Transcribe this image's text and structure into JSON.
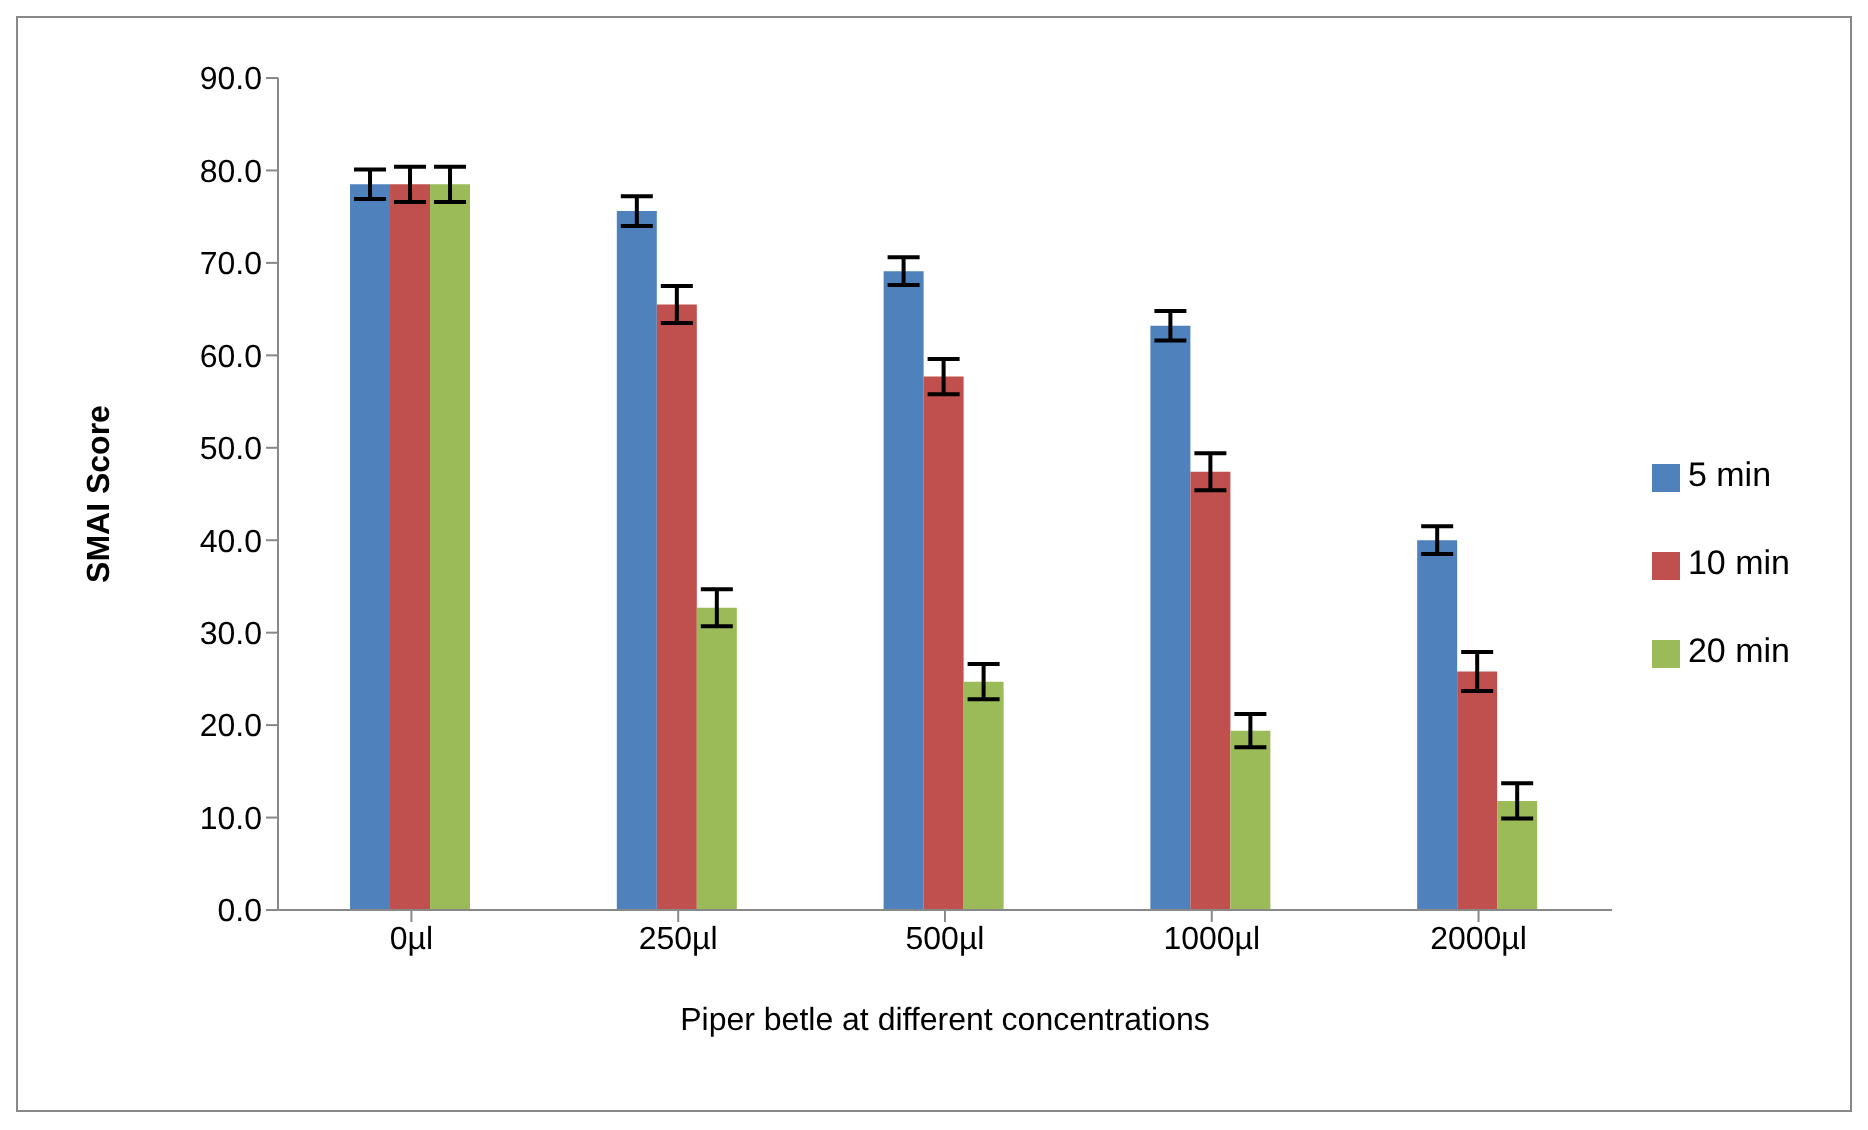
{
  "chart_data": {
    "type": "bar",
    "xlabel": "Piper betle  at different concentrations",
    "ylabel": "SMAI Score",
    "categories": [
      "0µl",
      "250µl",
      "500µl",
      "1000µl",
      "2000µl"
    ],
    "series": [
      {
        "name": "5 min",
        "color": "#4f81bd",
        "values": [
          78.5,
          75.6,
          69.1,
          63.2,
          40.0
        ],
        "errors": [
          1.6,
          1.6,
          1.5,
          1.6,
          1.5
        ]
      },
      {
        "name": "10 min",
        "color": "#c0504d",
        "values": [
          78.5,
          65.5,
          57.7,
          47.4,
          25.8
        ],
        "errors": [
          1.9,
          2.0,
          1.9,
          2.0,
          2.1
        ]
      },
      {
        "name": "20 min",
        "color": "#9bbb59",
        "values": [
          78.5,
          32.7,
          24.7,
          19.4,
          11.8
        ],
        "errors": [
          1.9,
          2.0,
          1.9,
          1.8,
          1.9
        ]
      }
    ],
    "ylim": [
      0,
      90
    ],
    "yticks": [
      {
        "value": 0,
        "label": "0.0"
      },
      {
        "value": 10,
        "label": "10.0"
      },
      {
        "value": 20,
        "label": "20.0"
      },
      {
        "value": 30,
        "label": "30.0"
      },
      {
        "value": 40,
        "label": "40.0"
      },
      {
        "value": 50,
        "label": "50.0"
      },
      {
        "value": 60,
        "label": "60.0"
      },
      {
        "value": 70,
        "label": "70.0"
      },
      {
        "value": 80,
        "label": "80.0"
      },
      {
        "value": 90,
        "label": "90.0"
      }
    ],
    "grid": false,
    "legend": "right"
  }
}
